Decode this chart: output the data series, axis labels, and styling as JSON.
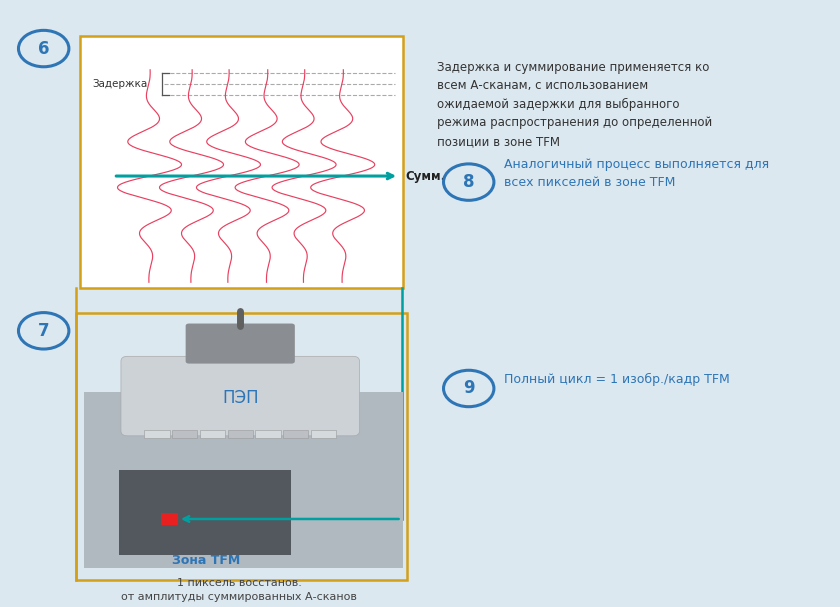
{
  "bg_color": "#dce8f0",
  "gold_color": "#D4A017",
  "teal_color": "#00A0A0",
  "blue_circle_color": "#2E75B6",
  "pink_wave_color": "#E84060",
  "text_blue": "#2E75B6",
  "text_dark": "#333333",
  "text_zadержka": "Задержка",
  "text_summ": "Сумм.",
  "text_pep": "ПЭП",
  "text_zona": "Зона TFM",
  "text_pixel": "1 пиксель восстанов.\nот амплитуды суммированных А-сканов",
  "text6": "Задержка и суммирование применяется ко\nвсем А-сканам, с использованием\nожидаемой задержки для выбранного\nрежима распространения до определенной\nпозиции в зоне TFM",
  "text8": "Аналогичный процесс выполняется для\nвсех пикселей в зоне TFM",
  "text9": "Полный цикл = 1 изобр./кадр TFM"
}
